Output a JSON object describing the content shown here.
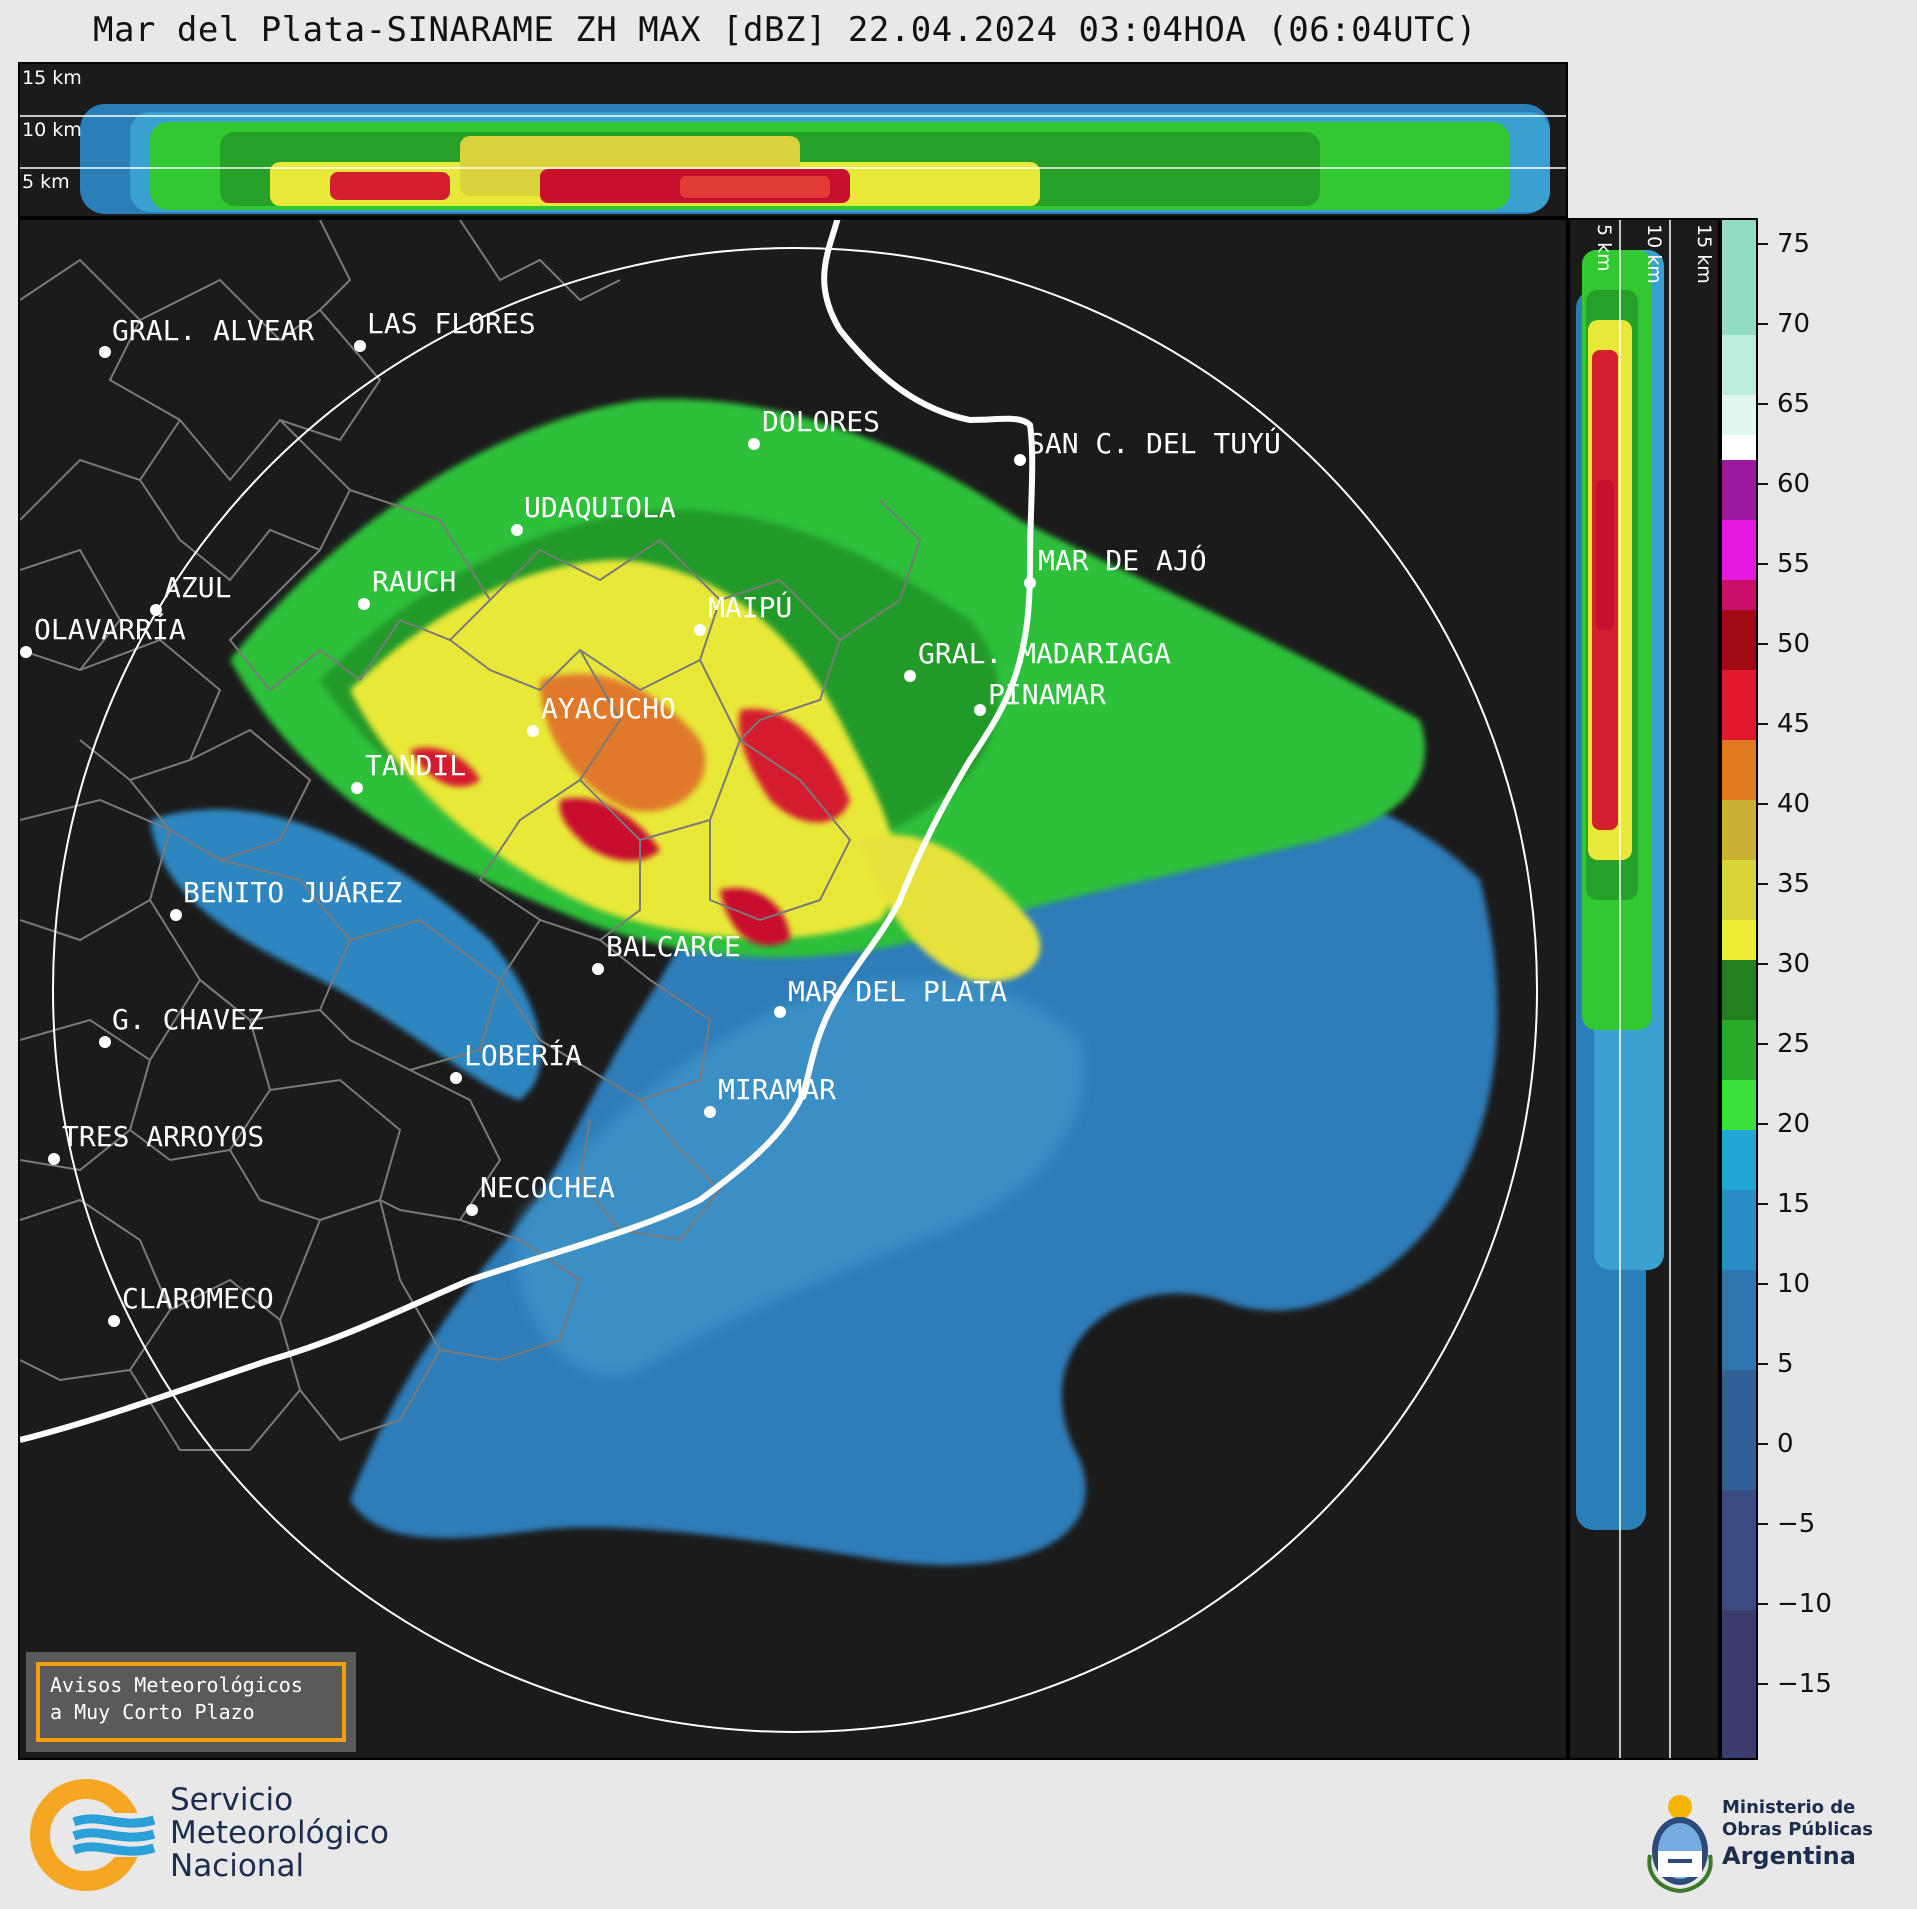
{
  "title": "Mar del Plata-SINARAME ZH MAX [dBZ] 22.04.2024 03:04HOA (06:04UTC)",
  "top_section": {
    "height_labels": [
      "15 km",
      "10 km",
      "5 km"
    ]
  },
  "right_section": {
    "height_labels": [
      "5 km",
      "10 km",
      "15 km"
    ]
  },
  "colorbar": {
    "unit": "dBZ",
    "ticks": [
      "75",
      "70",
      "65",
      "60",
      "55",
      "50",
      "45",
      "40",
      "35",
      "30",
      "25",
      "20",
      "15",
      "10",
      "5",
      "0",
      "−5",
      "−10",
      "−15"
    ],
    "range": [
      -20,
      77
    ]
  },
  "cities": [
    {
      "name": "GRAL. ALVEAR",
      "lon": -60.02,
      "lat": -36.03
    },
    {
      "name": "LAS FLORES",
      "lon": -59.1,
      "lat": -36.01
    },
    {
      "name": "DOLORES",
      "lon": -57.68,
      "lat": -36.32
    },
    {
      "name": "SAN C. DEL TUYÚ",
      "lon": -56.78,
      "lat": -36.36
    },
    {
      "name": "UDAQUIOLA",
      "lon": -58.66,
      "lat": -36.55
    },
    {
      "name": "RAUCH",
      "lon": -59.08,
      "lat": -36.77
    },
    {
      "name": "AZUL",
      "lon": -59.86,
      "lat": -36.78
    },
    {
      "name": "OLAVARRÍA",
      "lon": -60.32,
      "lat": -36.89
    },
    {
      "name": "MAIPÚ",
      "lon": -57.88,
      "lat": -36.87
    },
    {
      "name": "MAR DE AJÓ",
      "lon": -56.68,
      "lat": -36.72
    },
    {
      "name": "GRAL. MADARIAGA",
      "lon": -57.14,
      "lat": -37.0
    },
    {
      "name": "PINAMAR",
      "lon": -56.85,
      "lat": -37.11
    },
    {
      "name": "AYACUCHO",
      "lon": -58.49,
      "lat": -37.15
    },
    {
      "name": "TANDIL",
      "lon": -59.13,
      "lat": -37.32
    },
    {
      "name": "BENITO JUÁREZ",
      "lon": -59.8,
      "lat": -37.67
    },
    {
      "name": "BALCARCE",
      "lon": -58.26,
      "lat": -37.85
    },
    {
      "name": "MAR DEL PLATA",
      "lon": -57.55,
      "lat": -38.0
    },
    {
      "name": "G. CHAVEZ",
      "lon": -60.1,
      "lat": -37.95
    },
    {
      "name": "LOBERÍA",
      "lon": -58.78,
      "lat": -38.16
    },
    {
      "name": "MIRAMAR",
      "lon": -57.84,
      "lat": -38.27
    },
    {
      "name": "TRES ARROYOS",
      "lon": -60.28,
      "lat": -38.38
    },
    {
      "name": "NECOCHEA",
      "lon": -58.74,
      "lat": -38.56
    },
    {
      "name": "CLAROMECÓ",
      "lon": -60.0,
      "lat": -38.86
    }
  ],
  "cities_display": [
    "GRAL. ALVEAR",
    "LAS FLORES",
    "DOLORES",
    "SAN C. DEL TUYÚ",
    "UDAQUIOLA",
    "RAUCH",
    "AZUL",
    "OLAVARRÍA",
    "MAIPÚ",
    "MAR DE AJÓ",
    "GRAL. MADARIAGA",
    "PINAMAR",
    "AYACUCHO",
    "TANDIL",
    "BENITO JUÁREZ",
    "BALCARCE",
    "MAR DEL PLATA",
    "G. CHAVEZ",
    "LOBERÍA",
    "MIRAMAR",
    "TRES ARROYOS",
    "NECOCHEA",
    "CLAROMECO"
  ],
  "avisos": {
    "line1": "Avisos Meteorológicos",
    "line2": "a Muy Corto Plazo"
  },
  "smn_logo": {
    "line1": "Servicio",
    "line2": "Meteorológico",
    "line3": "Nacional"
  },
  "mop_logo": {
    "line1": "Ministerio de",
    "line2": "Obras Públicas",
    "line3": "Argentina"
  },
  "colors": {
    "background": "#1b1b1b",
    "coast": "#ffffff",
    "borders": "#7a7a7a",
    "smn_orange": "#f5a623",
    "smn_blue": "#2a9fd8"
  }
}
